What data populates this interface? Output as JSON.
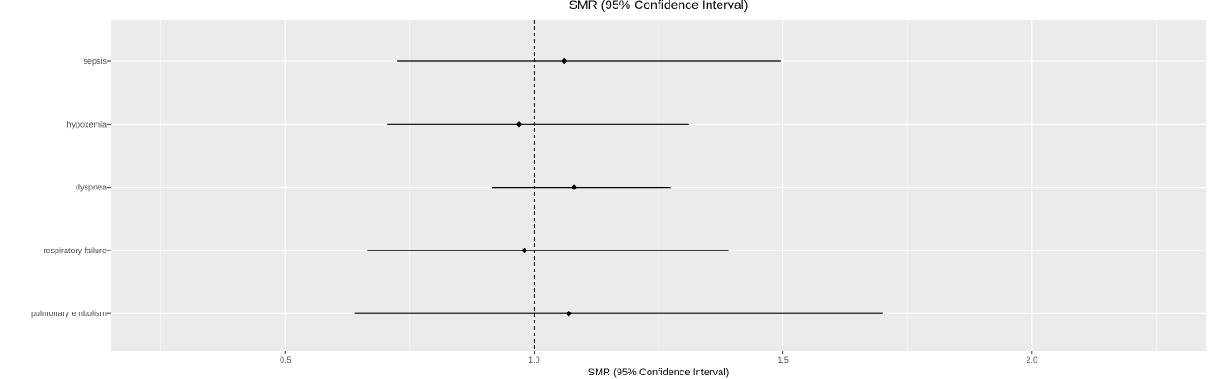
{
  "chart_data": {
    "type": "forest",
    "title": "SMR (95% Confidence Interval)",
    "xlabel": "SMR (95% Confidence Interval)",
    "ylabel": "",
    "xlim": [
      0.15,
      2.35
    ],
    "x_ticks": [
      0.5,
      1.0,
      1.5,
      2.0
    ],
    "x_tick_labels": [
      "0.5",
      "1.0",
      "1.5",
      "2.0"
    ],
    "reference_line": 1.0,
    "grid": true,
    "categories": [
      "sepsis",
      "hypoxemia",
      "dyspnea",
      "respiratory failure",
      "pulmonary embolism"
    ],
    "estimates": [
      1.06,
      0.97,
      1.08,
      0.98,
      1.07
    ],
    "lower": [
      0.725,
      0.705,
      0.915,
      0.665,
      0.64
    ],
    "upper": [
      1.495,
      1.31,
      1.275,
      1.39,
      1.7
    ]
  }
}
